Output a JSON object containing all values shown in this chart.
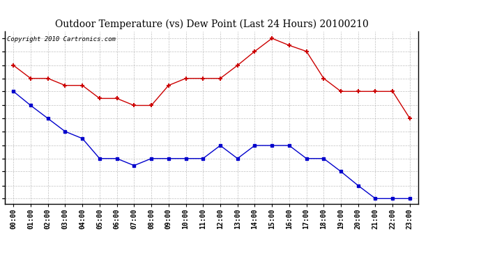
{
  "title": "Outdoor Temperature (vs) Dew Point (Last 24 Hours) 20100210",
  "copyright": "Copyright 2010 Cartronics.com",
  "hours": [
    "00:00",
    "01:00",
    "02:00",
    "03:00",
    "04:00",
    "05:00",
    "06:00",
    "07:00",
    "08:00",
    "09:00",
    "10:00",
    "11:00",
    "12:00",
    "13:00",
    "14:00",
    "15:00",
    "16:00",
    "17:00",
    "18:00",
    "19:00",
    "20:00",
    "21:00",
    "22:00",
    "23:00"
  ],
  "temp_red": [
    25.3,
    24.0,
    24.0,
    23.3,
    23.3,
    22.0,
    22.0,
    21.3,
    21.3,
    23.3,
    24.0,
    24.0,
    24.0,
    25.3,
    26.7,
    28.0,
    27.3,
    26.7,
    24.0,
    22.7,
    22.7,
    22.7,
    22.7,
    20.0
  ],
  "temp_blue": [
    22.7,
    21.3,
    20.0,
    18.7,
    18.0,
    16.0,
    16.0,
    15.3,
    16.0,
    16.0,
    16.0,
    16.0,
    17.3,
    16.0,
    17.3,
    17.3,
    17.3,
    16.0,
    16.0,
    14.7,
    13.3,
    12.0,
    12.0,
    12.0
  ],
  "red_color": "#cc0000",
  "blue_color": "#0000cc",
  "bg_color": "#ffffff",
  "plot_bg_color": "#ffffff",
  "grid_color": "#b0b0b0",
  "ylim_min": 11.5,
  "ylim_max": 28.7,
  "yticks": [
    12.0,
    13.3,
    14.7,
    16.0,
    17.3,
    18.7,
    20.0,
    21.3,
    22.7,
    24.0,
    25.3,
    26.7,
    28.0
  ],
  "title_fontsize": 10,
  "copyright_fontsize": 6.5,
  "tick_fontsize": 7
}
